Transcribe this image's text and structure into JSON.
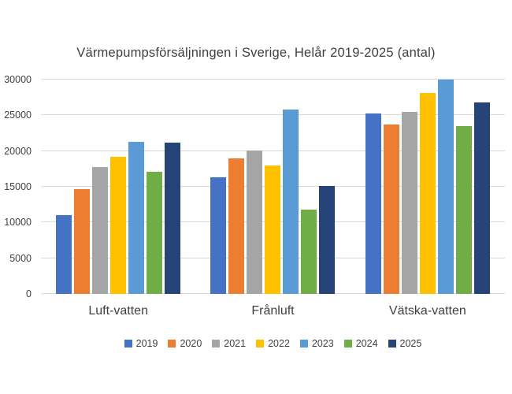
{
  "chart_data": {
    "type": "bar",
    "title": "Värmepumpsförsäljningen i Sverige, Helår 2019-2025 (antal)",
    "categories": [
      "Luft-vatten",
      "Frånluft",
      "Vätska-vatten"
    ],
    "series": [
      {
        "name": "2019",
        "color": "#4472C4",
        "values": [
          11000,
          16300,
          25300
        ]
      },
      {
        "name": "2020",
        "color": "#ED7D31",
        "values": [
          14700,
          19000,
          23700
        ]
      },
      {
        "name": "2021",
        "color": "#A5A5A5",
        "values": [
          17800,
          20100,
          25500
        ]
      },
      {
        "name": "2022",
        "color": "#FFC000",
        "values": [
          19200,
          18000,
          28100
        ]
      },
      {
        "name": "2023",
        "color": "#5B9BD5",
        "values": [
          21300,
          25800,
          30000
        ]
      },
      {
        "name": "2024",
        "color": "#70AD47",
        "values": [
          17100,
          11800,
          23500
        ]
      },
      {
        "name": "2025",
        "color": "#264478",
        "values": [
          21200,
          15100,
          26800
        ]
      }
    ],
    "xlabel": "",
    "ylabel": "",
    "ylim": [
      0,
      30000
    ],
    "ytick_step": 5000,
    "yticks": [
      "0",
      "5000",
      "10000",
      "15000",
      "20000",
      "25000",
      "30000"
    ],
    "grid": true,
    "gridline_color": "#d9d9d9",
    "legend_position": "bottom",
    "background_color": "#ffffff"
  }
}
